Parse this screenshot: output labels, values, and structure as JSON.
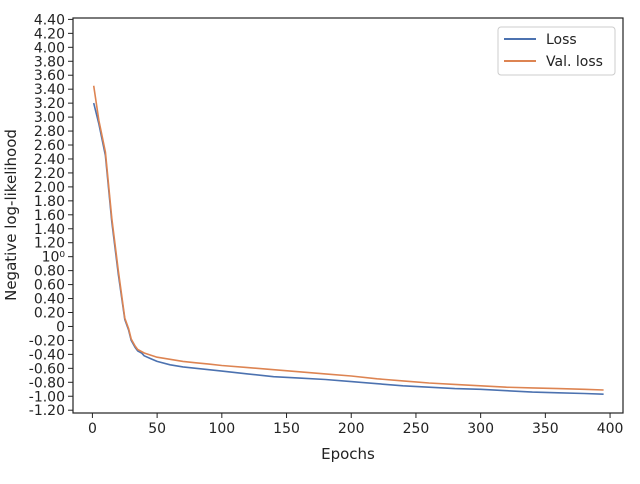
{
  "chart_data": {
    "type": "line",
    "title": "",
    "xlabel": "Epochs",
    "ylabel": "Negative log-likelihood",
    "xlim": [
      -15,
      410
    ],
    "ylim": [
      -1.24,
      4.42
    ],
    "x_ticks": [
      0,
      50,
      100,
      150,
      200,
      250,
      300,
      350,
      400
    ],
    "x_tick_labels": [
      "0",
      "50",
      "100",
      "150",
      "200",
      "250",
      "300",
      "350",
      "400"
    ],
    "y_ticks": [
      -1.2,
      -1.0,
      -0.8,
      -0.6,
      -0.4,
      -0.2,
      0,
      0.2,
      0.4,
      0.6,
      0.8,
      1.0,
      1.2,
      1.4,
      1.6,
      1.8,
      2.0,
      2.2,
      2.4,
      2.6,
      2.8,
      3.0,
      3.2,
      3.4,
      3.6,
      3.8,
      4.0,
      4.2,
      4.4
    ],
    "y_tick_labels": [
      "-1.20",
      "-1.00",
      "-0.80",
      "-0.60",
      "-0.40",
      "-0.20",
      "0",
      "0.20",
      "0.40",
      "0.60",
      "0.80",
      "10⁰",
      "1.20",
      "1.40",
      "1.60",
      "1.80",
      "2.00",
      "2.20",
      "2.40",
      "2.60",
      "2.80",
      "3.00",
      "3.20",
      "3.40",
      "3.60",
      "3.80",
      "4.00",
      "4.20",
      "4.40"
    ],
    "grid": false,
    "legend_position": "top-right",
    "series": [
      {
        "name": "Loss",
        "color": "#4c72b0",
        "x": [
          1,
          5,
          10,
          15,
          20,
          25,
          28,
          30,
          33,
          35,
          38,
          40,
          45,
          50,
          60,
          70,
          80,
          90,
          100,
          120,
          140,
          160,
          180,
          200,
          220,
          240,
          260,
          280,
          300,
          320,
          340,
          360,
          380,
          395
        ],
        "y": [
          3.2,
          2.9,
          2.45,
          1.5,
          0.75,
          0.1,
          -0.05,
          -0.2,
          -0.3,
          -0.35,
          -0.38,
          -0.42,
          -0.46,
          -0.5,
          -0.55,
          -0.58,
          -0.6,
          -0.62,
          -0.64,
          -0.68,
          -0.72,
          -0.74,
          -0.76,
          -0.79,
          -0.82,
          -0.85,
          -0.87,
          -0.89,
          -0.9,
          -0.92,
          -0.94,
          -0.95,
          -0.96,
          -0.97
        ]
      },
      {
        "name": "Val. loss",
        "color": "#dd8452",
        "x": [
          1,
          5,
          10,
          15,
          20,
          25,
          28,
          30,
          33,
          35,
          38,
          40,
          45,
          50,
          60,
          70,
          80,
          90,
          100,
          120,
          140,
          160,
          180,
          200,
          220,
          240,
          260,
          280,
          300,
          320,
          340,
          360,
          380,
          395
        ],
        "y": [
          3.45,
          2.95,
          2.5,
          1.55,
          0.8,
          0.12,
          -0.03,
          -0.18,
          -0.28,
          -0.33,
          -0.36,
          -0.38,
          -0.41,
          -0.44,
          -0.47,
          -0.5,
          -0.52,
          -0.54,
          -0.56,
          -0.59,
          -0.62,
          -0.65,
          -0.68,
          -0.71,
          -0.75,
          -0.78,
          -0.81,
          -0.83,
          -0.85,
          -0.87,
          -0.88,
          -0.89,
          -0.9,
          -0.91
        ]
      }
    ]
  }
}
